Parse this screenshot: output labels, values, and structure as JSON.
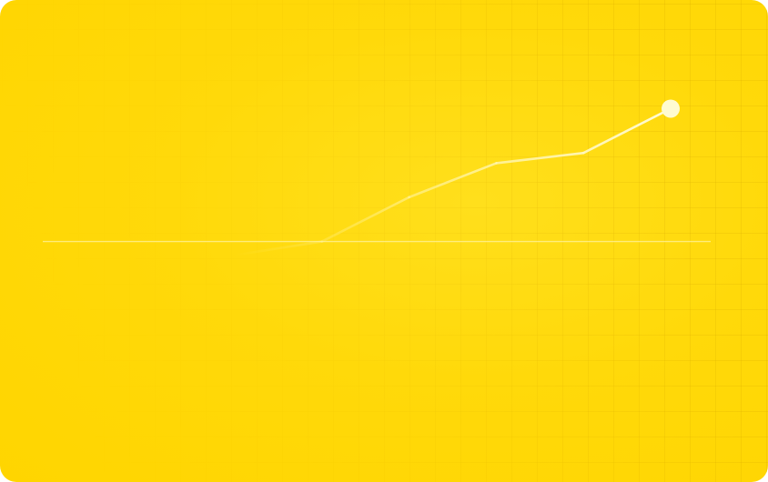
{
  "colors": {
    "card_background": "#ffd800",
    "grid_line": "#e8b800",
    "trend_line": "#fff6b0",
    "baseline": "#fff3a0",
    "endpoint_dot": "#fffbd0"
  },
  "chart_data": {
    "type": "line",
    "title": "",
    "xlabel": "",
    "ylabel": "",
    "grid": true,
    "legend": "none",
    "x": [
      0,
      1,
      2,
      3,
      4,
      5
    ],
    "series": [
      {
        "values": [
          12,
          20,
          46,
          66,
          72,
          98
        ]
      }
    ],
    "ylim": [
      0,
      110
    ],
    "baseline_value": 20,
    "end_marker": true
  }
}
